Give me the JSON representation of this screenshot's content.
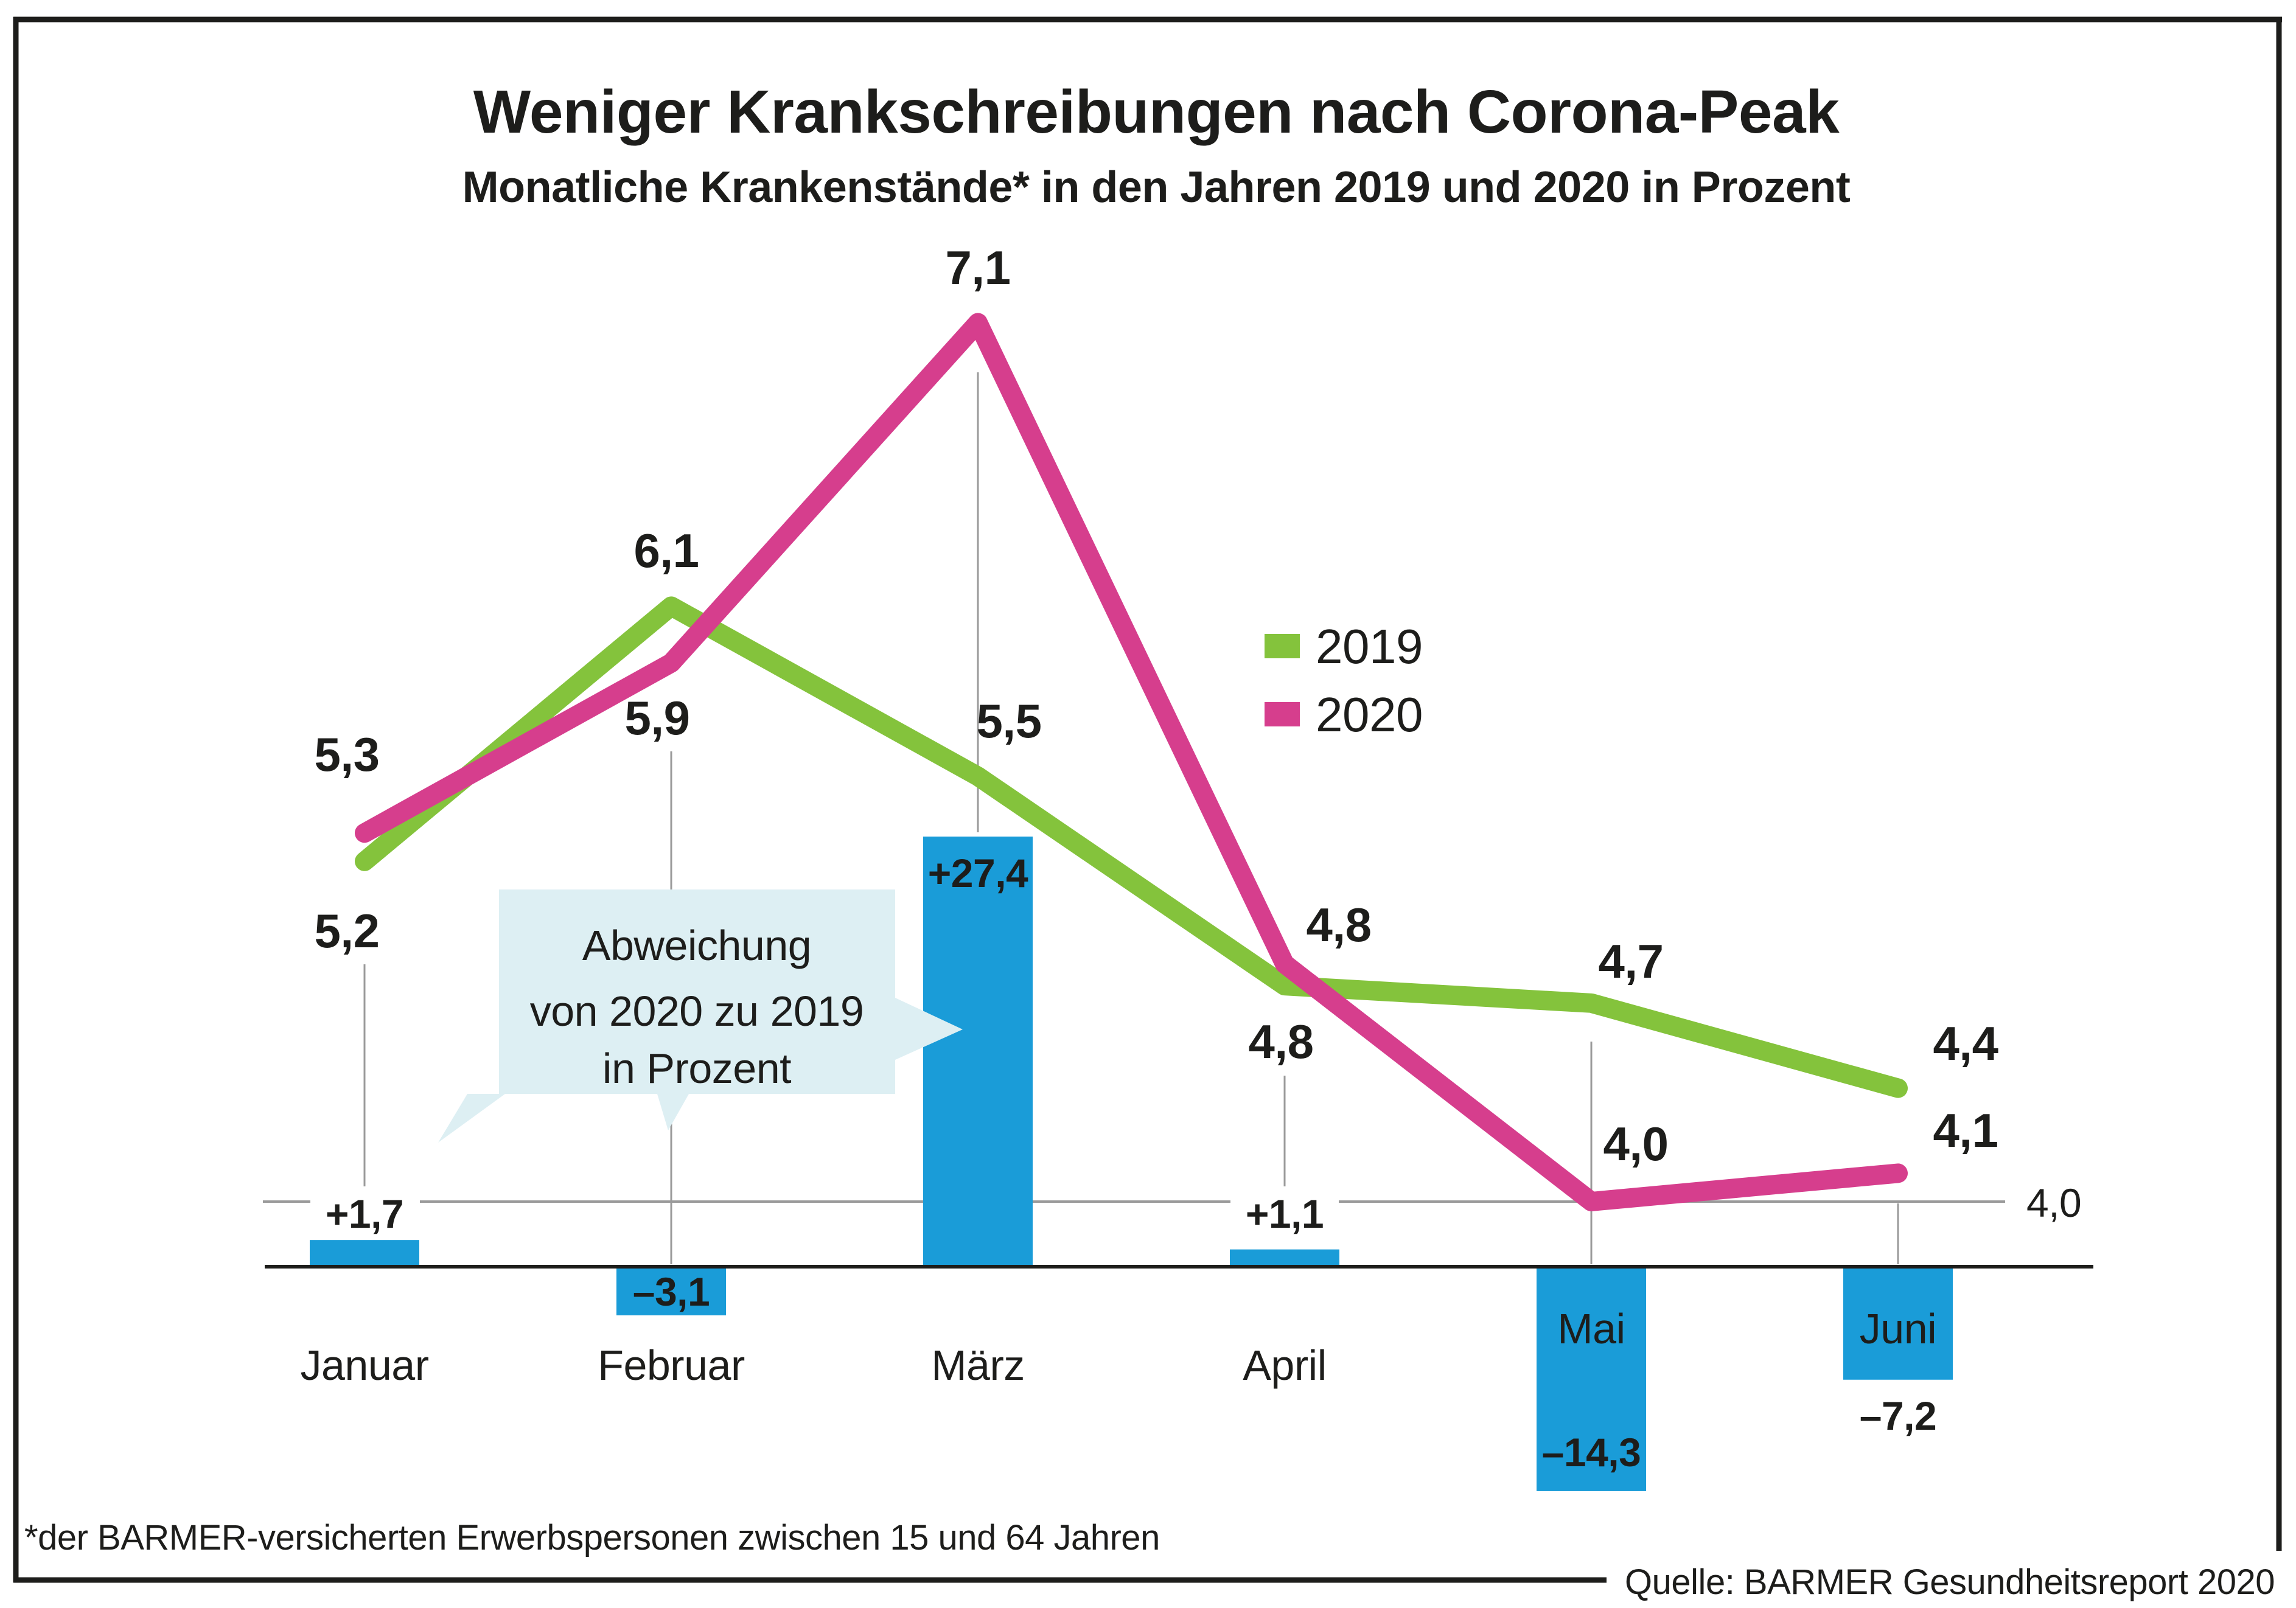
{
  "title": "Weniger Krankschreibungen nach Corona-Peak",
  "subtitle": "Monatliche Krankenstände* in den Jahren 2019 und 2020 in Prozent",
  "annotation": {
    "lines": [
      "Abweichung",
      "von 2020 zu 2019",
      "in Prozent"
    ]
  },
  "axis": {
    "right_label": "4,0"
  },
  "footnote": "*der BARMER-versicherten Erwerbspersonen zwischen 15 und 64 Jahren",
  "source": "Quelle: BARMER Gesundheitsreport 2020",
  "colors": {
    "green": "#84c33c",
    "pink": "#d63e8d",
    "blue": "#1a9cd8",
    "bubble": "#ddeff3",
    "grid": "#9a9a9a",
    "ink": "#1d1d1b",
    "white": "#ffffff"
  },
  "chart_data": {
    "type": "line+bar",
    "categories": [
      "Januar",
      "Februar",
      "März",
      "April",
      "Mai",
      "Juni"
    ],
    "series": [
      {
        "name": "2019",
        "color": "#84c33c",
        "values": [
          5.2,
          6.1,
          5.5,
          4.8,
          4.7,
          4.4
        ],
        "labels": [
          "5,2",
          "6,1",
          "5,5",
          "4,8",
          "4,7",
          "4,4"
        ]
      },
      {
        "name": "2020",
        "color": "#d63e8d",
        "values": [
          5.3,
          5.9,
          7.1,
          4.8,
          4.0,
          4.1
        ],
        "labels": [
          "5,3",
          "5,9",
          "7,1",
          "4,8",
          "4,0",
          "4,1"
        ]
      }
    ],
    "bars": {
      "name": "Abweichung von 2020 zu 2019 in Prozent",
      "color": "#1a9cd8",
      "values": [
        1.7,
        -3.1,
        27.4,
        1.1,
        -14.3,
        -7.2
      ],
      "labels": [
        "+1,7",
        "–3,1",
        "+27,4",
        "+1,1",
        "–14,3",
        "–7,2"
      ]
    },
    "gridline_value": "4,0",
    "ylim_line": [
      4.0,
      7.5
    ],
    "legend_position": "middle-right",
    "grid": "single gridline at 4,0"
  }
}
